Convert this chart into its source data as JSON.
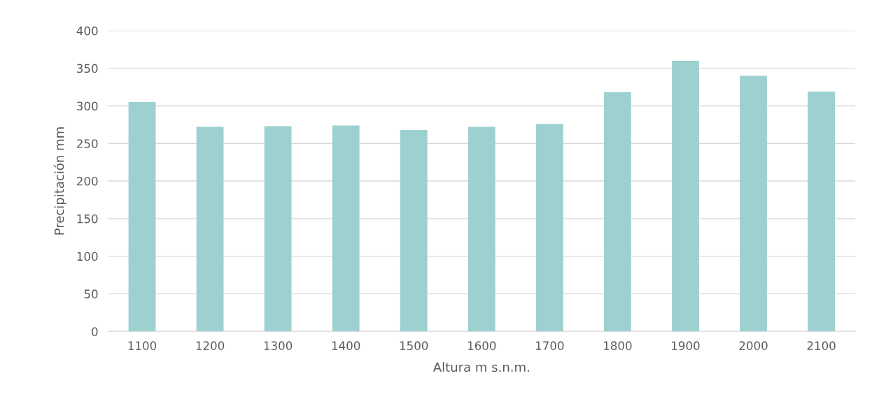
{
  "chart_data": {
    "type": "bar",
    "xlabel": "Altura m s.n.m.",
    "ylabel": "Precipitación mm",
    "categories": [
      "1100",
      "1200",
      "1300",
      "1400",
      "1500",
      "1600",
      "1700",
      "1800",
      "1900",
      "2000",
      "2100"
    ],
    "values": [
      305,
      272,
      273,
      274,
      268,
      272,
      276,
      318,
      360,
      340,
      319
    ],
    "color": "#9dd1d0",
    "ylim": [
      0,
      400
    ],
    "yticks": [
      0,
      50,
      100,
      150,
      200,
      250,
      300,
      350,
      400
    ],
    "grid": "y",
    "legend": false
  }
}
